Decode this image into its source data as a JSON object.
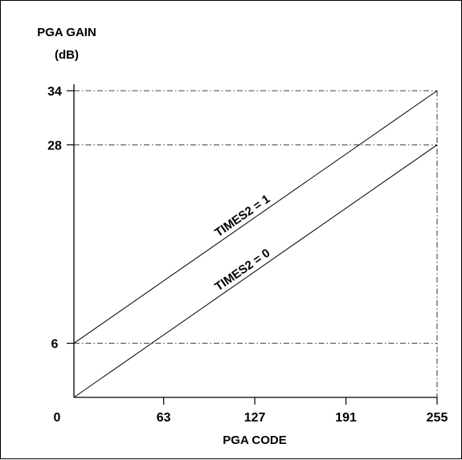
{
  "chart_data": {
    "type": "line",
    "title": "",
    "ylabel_line1": "PGA GAIN",
    "ylabel_line2": "(dB)",
    "xlabel": "PGA CODE",
    "xlim": [
      0,
      255
    ],
    "ylim": [
      0,
      34
    ],
    "x_ticks": [
      63,
      127,
      191,
      255
    ],
    "y_ticks": [
      6,
      28,
      34
    ],
    "origin_label": "0",
    "grid": "dash-dot reference lines at y = 6, 28, 34 and x = 255",
    "series": [
      {
        "name": "TIMES2 = 1",
        "x": [
          0,
          255
        ],
        "y": [
          6,
          34
        ]
      },
      {
        "name": "TIMES2 = 0",
        "x": [
          0,
          255
        ],
        "y": [
          0,
          28
        ]
      }
    ]
  }
}
